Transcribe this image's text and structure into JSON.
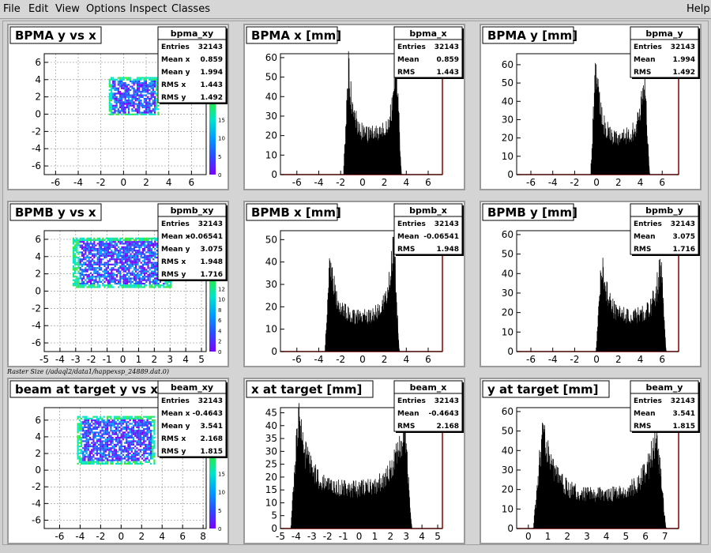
{
  "menu": {
    "file": "File",
    "edit": "Edit",
    "view": "View",
    "options": "Options",
    "inspect": "Inspect",
    "classes": "Classes",
    "help": "Help"
  },
  "raster_label": "Raster Size (/adaql2/data1/happexsp_24889.dat.0)",
  "colors": {
    "axis_frame": "#000000",
    "hist_line": "#000000",
    "zero_axis": "#8b0000",
    "palette": [
      "#7a00ff",
      "#2a4cff",
      "#009cff",
      "#00e5c8",
      "#2eea3c"
    ]
  },
  "stats_labels": {
    "entries": "Entries",
    "meanx": "Mean x",
    "meany": "Mean y",
    "rmsx": "RMS x",
    "rmsy": "RMS y",
    "mean": "Mean",
    "rms": "RMS"
  },
  "chart_data": [
    {
      "id": "bpma_xy",
      "type": "heatmap",
      "title": "BPMA y vs x",
      "stats_name": "bpma_xy",
      "entries": "32143",
      "meanx": "0.859",
      "meany": "1.994",
      "rmsx": "1.443",
      "rmsy": "1.492",
      "xticks": [
        "-6",
        "-4",
        "-2",
        "0",
        "2",
        "4",
        "6"
      ],
      "xlim": [
        -7,
        7.3
      ],
      "yticks": [
        "-6",
        "-4",
        "-2",
        "0",
        "2",
        "4",
        "6"
      ],
      "ylim": [
        -7,
        7
      ],
      "grid": true,
      "blob": [
        -1.3,
        3.1,
        0,
        4.3
      ],
      "zticks": [
        "0",
        "5",
        "10",
        "15"
      ],
      "zmax": 20
    },
    {
      "id": "bpma_x",
      "type": "line",
      "title": "BPMA x [mm]",
      "stats_name": "bpma_x",
      "entries": "32143",
      "mean": "0.859",
      "rms": "1.443",
      "xticks": [
        "-6",
        "-4",
        "-2",
        "0",
        "2",
        "4",
        "6"
      ],
      "xlim": [
        -7.5,
        7.3
      ],
      "yticks": [
        "0",
        "10",
        "20",
        "30",
        "40",
        "50",
        "60"
      ],
      "ylim": [
        0,
        62
      ],
      "shape": [
        -1.3,
        3.1,
        55,
        62,
        20
      ]
    },
    {
      "id": "bpma_y",
      "type": "line",
      "title": "BPMA y [mm]",
      "stats_name": "bpma_y",
      "entries": "32143",
      "mean": "1.994",
      "rms": "1.492",
      "xticks": [
        "-6",
        "-4",
        "-2",
        "0",
        "2",
        "4",
        "6"
      ],
      "xlim": [
        -7.3,
        7.5
      ],
      "yticks": [
        "0",
        "10",
        "20",
        "30",
        "40",
        "50",
        "60"
      ],
      "ylim": [
        0,
        66
      ],
      "shape": [
        -0.1,
        4.4,
        62,
        58,
        20
      ]
    },
    {
      "id": "bpmb_xy",
      "type": "heatmap",
      "title": "BPMB y vs x",
      "stats_name": "bpmb_xy",
      "entries": "32143",
      "meanx": "-0.06541",
      "meany": "3.075",
      "rmsx": "1.948",
      "rmsy": "1.716",
      "xticks": [
        "-5",
        "-4",
        "-3",
        "-2",
        "-1",
        "0",
        "1",
        "2",
        "3",
        "4",
        "5"
      ],
      "xlim": [
        -5,
        5.3
      ],
      "yticks": [
        "-6",
        "-4",
        "-2",
        "0",
        "2",
        "4",
        "6"
      ],
      "ylim": [
        -7,
        7
      ],
      "grid": true,
      "blob": [
        -3.2,
        3.0,
        0.5,
        6.2
      ],
      "zticks": [
        "0",
        "2",
        "4",
        "6",
        "8",
        "10",
        "12"
      ],
      "zmax": 14
    },
    {
      "id": "bpmb_x",
      "type": "line",
      "title": "BPMB x [mm]",
      "stats_name": "bpmb_x",
      "entries": "32143",
      "mean": "-0.06541",
      "rms": "1.948",
      "xticks": [
        "-6",
        "-4",
        "-2",
        "0",
        "2",
        "4",
        "6"
      ],
      "xlim": [
        -7.5,
        7.3
      ],
      "yticks": [
        "0",
        "10",
        "20",
        "30",
        "40",
        "50"
      ],
      "ylim": [
        0,
        54
      ],
      "shape": [
        -3.0,
        2.9,
        43,
        49,
        15
      ]
    },
    {
      "id": "bpmb_y",
      "type": "line",
      "title": "BPMB y [mm]",
      "stats_name": "bpmb_y",
      "entries": "32143",
      "mean": "3.075",
      "rms": "1.716",
      "xticks": [
        "-6",
        "-4",
        "-2",
        "0",
        "2",
        "4",
        "6"
      ],
      "xlim": [
        -7.3,
        7.5
      ],
      "yticks": [
        "0",
        "10",
        "20",
        "30",
        "40",
        "50",
        "60"
      ],
      "ylim": [
        0,
        62
      ],
      "shape": [
        0.4,
        5.9,
        50,
        48,
        18
      ]
    },
    {
      "id": "beam_xy",
      "type": "heatmap",
      "title": "beam at target y vs x",
      "stats_name": "beam_xy",
      "entries": "32143",
      "meanx": "-0.4643",
      "meany": "3.541",
      "rmsx": "2.168",
      "rmsy": "1.815",
      "xticks": [
        "-6",
        "-4",
        "-2",
        "0",
        "2",
        "4",
        "6",
        "8"
      ],
      "xlim": [
        -7.5,
        8.3
      ],
      "yticks": [
        "-6",
        "-4",
        "-2",
        "0",
        "2",
        "4",
        "6"
      ],
      "ylim": [
        -7,
        7.5
      ],
      "grid": true,
      "blob": [
        -4.3,
        3.3,
        0.8,
        6.5
      ],
      "zticks": [
        "0",
        "5",
        "10",
        "15"
      ],
      "zmax": 20
    },
    {
      "id": "beam_x",
      "type": "line",
      "title": "x at target [mm]",
      "stats_name": "beam_x",
      "entries": "32143",
      "mean": "-0.4643",
      "rms": "2.168",
      "xticks": [
        "-5",
        "-4",
        "-3",
        "-2",
        "-1",
        "0",
        "1",
        "2",
        "3",
        "4",
        "5"
      ],
      "xlim": [
        -5,
        5.3
      ],
      "yticks": [
        "0",
        "5",
        "10",
        "15",
        "20",
        "25",
        "30",
        "35",
        "40",
        "45"
      ],
      "ylim": [
        0,
        47
      ],
      "shape": [
        -3.9,
        2.9,
        45,
        42,
        15
      ]
    },
    {
      "id": "beam_y",
      "type": "line",
      "title": "y at target [mm]",
      "stats_name": "beam_y",
      "entries": "32143",
      "mean": "3.541",
      "rms": "1.815",
      "xticks": [
        "0",
        "1",
        "2",
        "3",
        "4",
        "5",
        "6",
        "7"
      ],
      "xlim": [
        -0.6,
        7.7
      ],
      "yticks": [
        "0",
        "10",
        "20",
        "30",
        "40",
        "50",
        "60"
      ],
      "ylim": [
        0,
        62
      ],
      "shape": [
        0.7,
        6.6,
        52,
        50,
        17
      ]
    }
  ]
}
